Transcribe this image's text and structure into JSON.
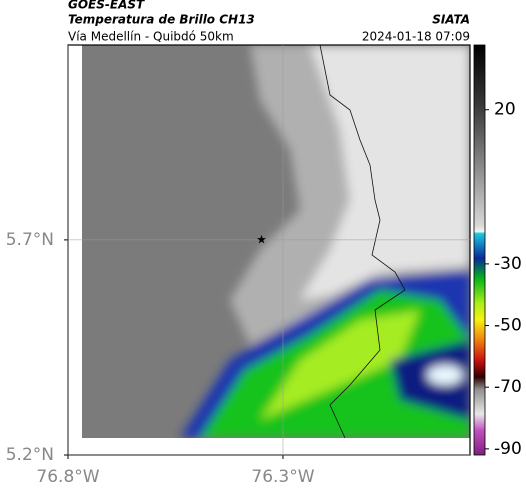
{
  "header": {
    "source": "GOES-EAST",
    "product": "Temperatura de Brillo CH13",
    "agency": "SIATA",
    "route": "Vía Medellín - Quibdó 50km",
    "timestamp": "2024-01-18 07:09"
  },
  "map": {
    "lonlim": [
      -76.8,
      -75.865
    ],
    "latlim": [
      5.2,
      6.153
    ],
    "lonticks": [
      {
        "value": -76.8,
        "label": "76.8°W"
      },
      {
        "value": -76.3,
        "label": "76.3°W"
      }
    ],
    "latticks": [
      {
        "value": 5.2,
        "label": "5.2°N"
      },
      {
        "value": 5.7,
        "label": "5.7°N"
      }
    ],
    "marker": {
      "lon": -76.35,
      "lat": 5.7
    }
  },
  "colorbar": {
    "clim": [
      41,
      -92
    ],
    "ticks": [
      20,
      -30,
      -50,
      -70,
      -90
    ]
  }
}
